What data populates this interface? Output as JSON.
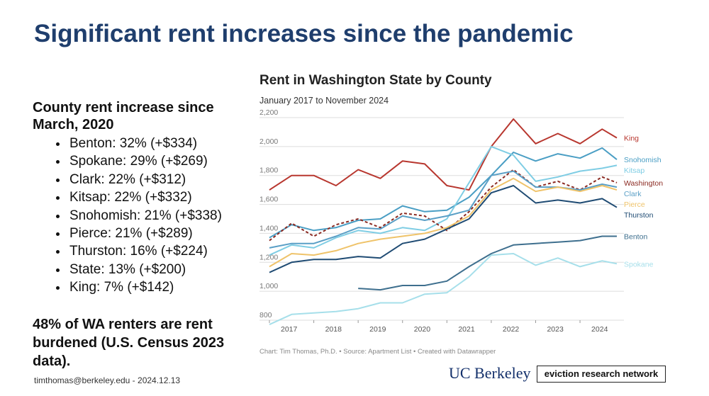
{
  "slide": {
    "title": "Significant rent increases since the pandemic",
    "heading": "County rent increase since March, 2020",
    "bullets": [
      "Benton: 32% (+$334)",
      "Spokane: 29% (+$269)",
      "Clark: 22% (+$312)",
      "Kitsap: 22% (+$332)",
      "Snohomish: 21% (+$338)",
      "Pierce: 21% (+$289)",
      "Thurston: 16% (+$224)",
      "State: 13% (+$200)",
      "King: 7% (+$142)"
    ],
    "note": "48% of WA renters are rent burdened (U.S. Census 2023 data).",
    "footer": "timthomas@berkeley.edu - 2024.12.13",
    "logo_left": "UC Berkeley",
    "logo_right": "eviction research network"
  },
  "chart_data": {
    "type": "line",
    "title": "Rent in Washington State by County",
    "subtitle": "January 2017 to November 2024",
    "source": "Chart: Tim Thomas, Ph.D. • Source: Apartment List • Created with Datawrapper",
    "x": [
      2017,
      2017.5,
      2018,
      2018.5,
      2019,
      2019.5,
      2020,
      2020.5,
      2021,
      2021.5,
      2022,
      2022.5,
      2023,
      2023.5,
      2024,
      2024.5,
      2024.83
    ],
    "xlim": [
      2017,
      2024.83
    ],
    "xticks": [
      2017,
      2018,
      2019,
      2020,
      2021,
      2022,
      2023,
      2024
    ],
    "ylim": [
      800,
      2200
    ],
    "yticks": [
      800,
      {
        "value": 1000,
        "label": "1,000"
      },
      {
        "value": 1200,
        "label": "1,200"
      },
      {
        "value": 1400,
        "label": "1,400"
      },
      {
        "value": 1600,
        "label": "1,600"
      },
      {
        "value": 1800,
        "label": "1,800"
      },
      {
        "value": 2000,
        "label": "2,000"
      },
      {
        "value": 2200,
        "label": "2,200"
      }
    ],
    "grid": true,
    "series": [
      {
        "name": "King",
        "color": "#b8372f",
        "values": [
          1700,
          1800,
          1800,
          1730,
          1840,
          1780,
          1900,
          1880,
          1730,
          1700,
          2000,
          2190,
          2020,
          2090,
          2020,
          2120,
          2060
        ]
      },
      {
        "name": "Snohomish",
        "color": "#4a9ec4",
        "values": [
          1370,
          1460,
          1420,
          1440,
          1490,
          1500,
          1590,
          1550,
          1560,
          1650,
          1800,
          1960,
          1900,
          1950,
          1920,
          1990,
          1910
        ]
      },
      {
        "name": "Kitsap",
        "color": "#7fcde4",
        "values": [
          1250,
          1320,
          1300,
          1370,
          1420,
          1400,
          1440,
          1420,
          1500,
          1750,
          2000,
          1940,
          1760,
          1790,
          1830,
          1850,
          1870
        ]
      },
      {
        "name": "Washington",
        "color": "#8b2a22",
        "style": "dashed",
        "values": [
          1350,
          1470,
          1380,
          1460,
          1500,
          1440,
          1540,
          1520,
          1420,
          1550,
          1720,
          1840,
          1720,
          1760,
          1700,
          1790,
          1750
        ]
      },
      {
        "name": "Clark",
        "color": "#5a9fc6",
        "values": [
          1300,
          1330,
          1330,
          1380,
          1440,
          1430,
          1520,
          1490,
          1520,
          1560,
          1800,
          1830,
          1720,
          1720,
          1700,
          1740,
          1720
        ]
      },
      {
        "name": "Pierce",
        "color": "#efc36a",
        "values": [
          1170,
          1260,
          1250,
          1280,
          1330,
          1360,
          1380,
          1400,
          1440,
          1520,
          1700,
          1780,
          1690,
          1720,
          1690,
          1730,
          1700
        ]
      },
      {
        "name": "Thurston",
        "color": "#1f4b73",
        "values": [
          1130,
          1200,
          1220,
          1220,
          1240,
          1230,
          1330,
          1360,
          1430,
          1500,
          1680,
          1730,
          1610,
          1630,
          1610,
          1640,
          1580
        ]
      },
      {
        "name": "Benton",
        "color": "#3e6f8e",
        "values": [
          null,
          null,
          null,
          null,
          1020,
          1010,
          1040,
          1040,
          1070,
          1170,
          1260,
          1320,
          1330,
          1340,
          1350,
          1380,
          1380
        ]
      },
      {
        "name": "Spokane",
        "color": "#a6dfea",
        "values": [
          770,
          840,
          850,
          860,
          880,
          920,
          920,
          980,
          990,
          1100,
          1250,
          1260,
          1180,
          1230,
          1170,
          1210,
          1190
        ]
      }
    ]
  }
}
